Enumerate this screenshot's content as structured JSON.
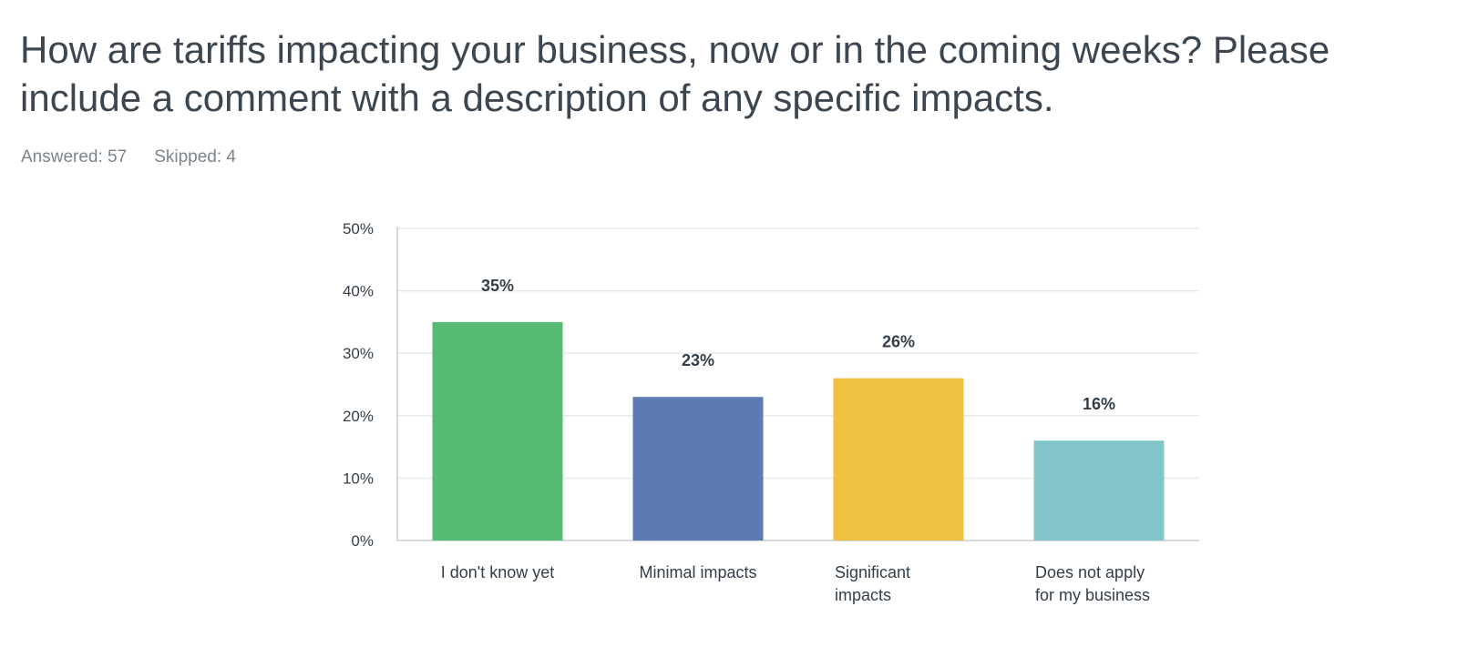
{
  "question": {
    "title": "How are tariffs impacting your business, now or in the coming weeks? Please include a comment with a description of any specific impacts.",
    "answered": "Answered: 57",
    "skipped": "Skipped: 4"
  },
  "chart_data": {
    "type": "bar",
    "title": "",
    "xlabel": "",
    "ylabel": "",
    "ylim": [
      0,
      50
    ],
    "y_ticks": [
      0,
      10,
      20,
      30,
      40,
      50
    ],
    "y_tick_suffix": "%",
    "grid": true,
    "legend": "none",
    "categories": [
      [
        "I don't know yet"
      ],
      [
        "Minimal impacts"
      ],
      [
        "Significant",
        "impacts"
      ],
      [
        "Does not apply",
        "for my business"
      ]
    ],
    "values": [
      35,
      23,
      26,
      16
    ],
    "data_labels": [
      "35%",
      "23%",
      "26%",
      "16%"
    ],
    "colors": [
      "#57bb75",
      "#5b7bb2",
      "#f0c040",
      "#82c6cb"
    ]
  }
}
